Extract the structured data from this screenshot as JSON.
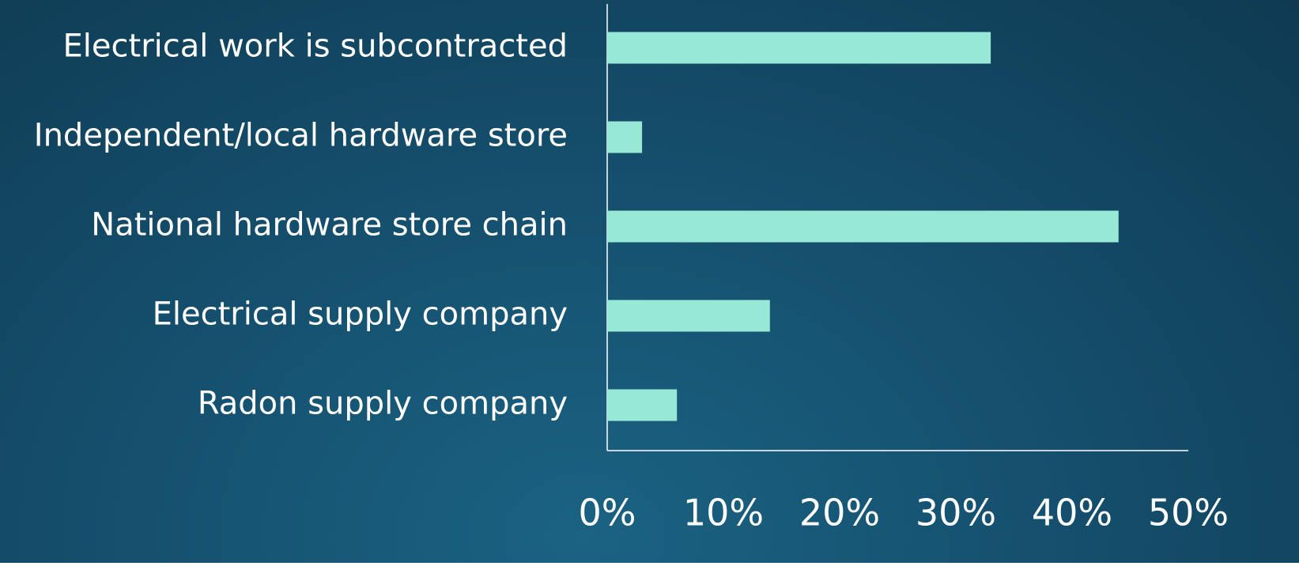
{
  "chart_data": {
    "type": "bar",
    "orientation": "horizontal",
    "categories": [
      "Electrical work is subcontracted",
      "Independent/local hardware store",
      "National hardware store chain",
      "Electrical supply company",
      "Radon supply company"
    ],
    "values": [
      33,
      3,
      44,
      14,
      6
    ],
    "color": "#98e8d6",
    "xlim": [
      0,
      50
    ],
    "xticks": [
      {
        "value": 0,
        "label": "0%"
      },
      {
        "value": 10,
        "label": "10%"
      },
      {
        "value": 20,
        "label": "20%"
      },
      {
        "value": 30,
        "label": "30%"
      },
      {
        "value": 40,
        "label": "40%"
      },
      {
        "value": 50,
        "label": "50%"
      }
    ],
    "grid": false
  }
}
